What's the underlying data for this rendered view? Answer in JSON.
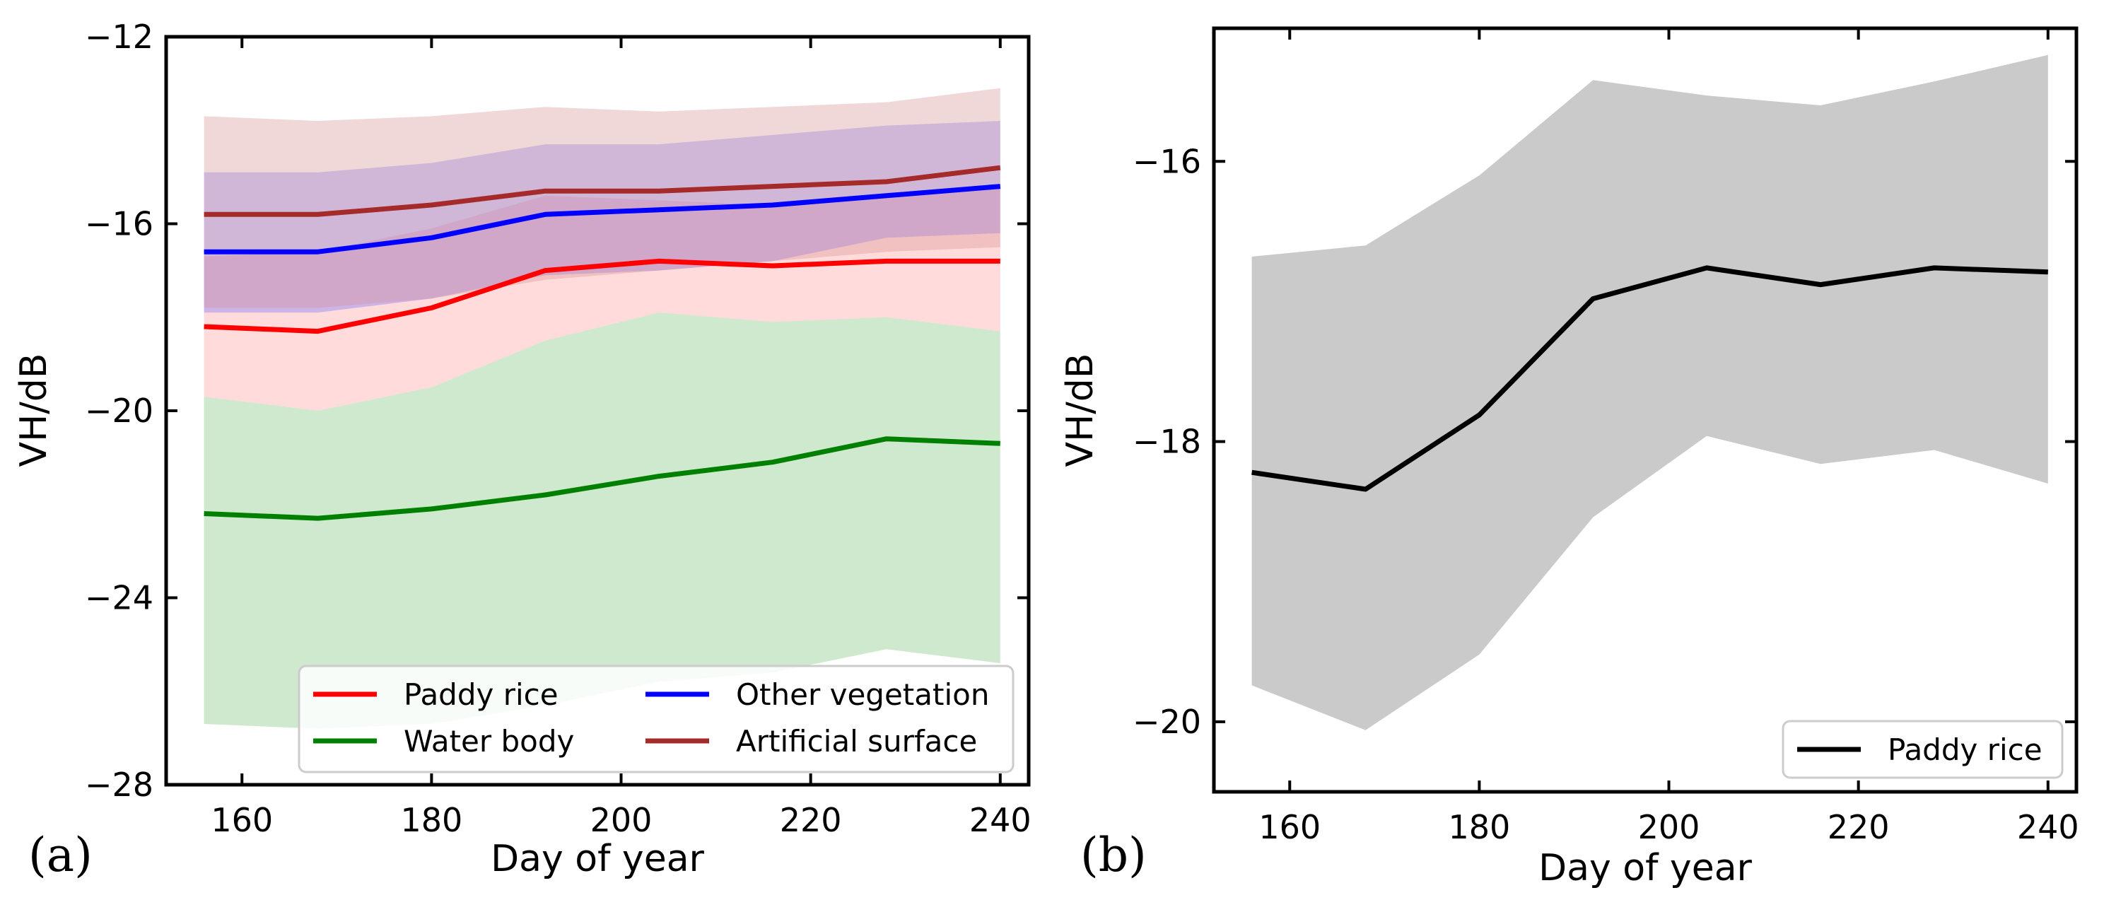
{
  "chart_data": [
    {
      "type": "line",
      "panel_label": "(a)",
      "xlabel": "Day of year",
      "ylabel": "VH/dB",
      "xlim": [
        152,
        243
      ],
      "ylim": [
        -28,
        -12
      ],
      "xticks": [
        160,
        180,
        200,
        220,
        240
      ],
      "yticks": [
        -28,
        -24,
        -20,
        -16,
        -12
      ],
      "x": [
        156,
        168,
        180,
        192,
        204,
        216,
        228,
        240
      ],
      "legend_position": "lower-right",
      "legend_columns": 2,
      "series": [
        {
          "name": "Water body",
          "color": "#008000",
          "band_color": "#84c984",
          "band_opacity": 0.4,
          "values": [
            -22.2,
            -22.3,
            -22.1,
            -21.8,
            -21.4,
            -21.1,
            -20.6,
            -20.7
          ],
          "upper": [
            -19.7,
            -20.0,
            -19.5,
            -18.5,
            -17.9,
            -18.1,
            -18.0,
            -18.3
          ],
          "lower": [
            -26.7,
            -26.8,
            -26.7,
            -26.3,
            -25.8,
            -25.6,
            -25.1,
            -25.4
          ]
        },
        {
          "name": "Paddy rice",
          "color": "#ff0000",
          "band_color": "#ff4d4d",
          "band_opacity": 0.2,
          "values": [
            -18.2,
            -18.3,
            -17.8,
            -17.0,
            -16.8,
            -16.9,
            -16.8,
            -16.8
          ],
          "upper": [
            -16.7,
            -16.6,
            -16.1,
            -15.4,
            -15.5,
            -15.6,
            -15.4,
            -15.2
          ],
          "lower": [
            -19.7,
            -20.0,
            -19.5,
            -18.5,
            -17.9,
            -18.1,
            -18.0,
            -18.3
          ]
        },
        {
          "name": "Other vegetation",
          "color": "#0000ff",
          "band_color": "#5a5aff",
          "band_opacity": 0.3,
          "values": [
            -16.6,
            -16.6,
            -16.3,
            -15.8,
            -15.7,
            -15.6,
            -15.4,
            -15.2
          ],
          "upper": [
            -14.9,
            -14.9,
            -14.7,
            -14.3,
            -14.3,
            -14.1,
            -13.9,
            -13.8
          ],
          "lower": [
            -17.9,
            -17.9,
            -17.6,
            -17.1,
            -17.0,
            -16.8,
            -16.3,
            -16.2
          ]
        },
        {
          "name": "Artificial surface",
          "color": "#a52a2a",
          "band_color": "#d79090",
          "band_opacity": 0.35,
          "values": [
            -15.8,
            -15.8,
            -15.6,
            -15.3,
            -15.3,
            -15.2,
            -15.1,
            -14.8
          ],
          "upper": [
            -13.7,
            -13.8,
            -13.7,
            -13.5,
            -13.6,
            -13.5,
            -13.4,
            -13.1
          ],
          "lower": [
            -17.8,
            -17.8,
            -17.6,
            -17.2,
            -17.0,
            -16.8,
            -16.6,
            -16.5
          ]
        }
      ],
      "legend_order": [
        "Paddy rice",
        "Water body",
        "Other vegetation",
        "Artificial surface"
      ]
    },
    {
      "type": "line",
      "panel_label": "(b)",
      "xlabel": "Day of year",
      "ylabel": "VH/dB",
      "xlim": [
        152,
        243
      ],
      "ylim": [
        -20.5,
        -15.05
      ],
      "xticks": [
        160,
        180,
        200,
        220,
        240
      ],
      "yticks": [
        -20,
        -18,
        -16
      ],
      "x": [
        156,
        168,
        180,
        192,
        204,
        216,
        228,
        240
      ],
      "legend_position": "lower-right",
      "legend_columns": 1,
      "series": [
        {
          "name": "Paddy rice",
          "color": "#000000",
          "band_color": "#bdbdbd",
          "band_opacity": 0.8,
          "values": [
            -18.22,
            -18.34,
            -17.81,
            -16.98,
            -16.76,
            -16.88,
            -16.76,
            -16.79
          ],
          "upper": [
            -16.68,
            -16.6,
            -16.1,
            -15.42,
            -15.53,
            -15.6,
            -15.43,
            -15.24
          ],
          "lower": [
            -19.74,
            -20.06,
            -19.52,
            -18.54,
            -17.96,
            -18.16,
            -18.06,
            -18.3
          ]
        }
      ],
      "legend_order": [
        "Paddy rice"
      ]
    }
  ]
}
